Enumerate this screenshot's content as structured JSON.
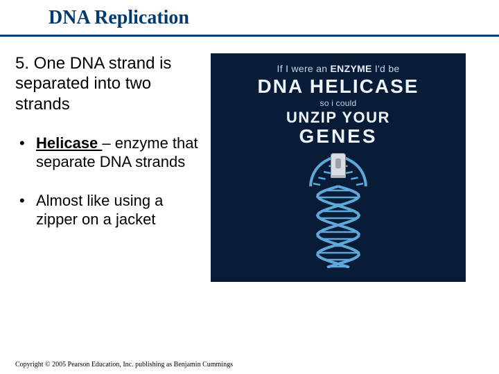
{
  "colors": {
    "title_text": "#003a6e",
    "rule": "#003a6e",
    "body_text": "#000000",
    "graphic_bg": "#081c38",
    "graphic_text_dim": "#c5d7e8",
    "graphic_text_bright": "#eef5fb",
    "dna_strand": "#5fa8da",
    "zipper_body": "#d7dde3"
  },
  "title": "DNA Replication",
  "left": {
    "point5": "5. One DNA strand is separated into two strands",
    "b1_term": "Helicase ",
    "b1_dash": "– ",
    "b1_rest": "enzyme that separate DNA strands",
    "b2": "Almost like using a zipper on a jacket"
  },
  "graphic": {
    "line1_a": "If I were an ",
    "line1_b": "ENZYME",
    "line1_c": " I'd be",
    "line2": "DNA HELICASE",
    "line3": "so i could",
    "line4": "UNZIP YOUR",
    "line5": "GENES",
    "dna_svg": {
      "strand_color": "#5fa8da",
      "rung_color": "#5fa8da",
      "stroke_width": 4
    }
  },
  "footer": "Copyright © 2005 Pearson Education, Inc. publishing as Benjamin Cummings"
}
